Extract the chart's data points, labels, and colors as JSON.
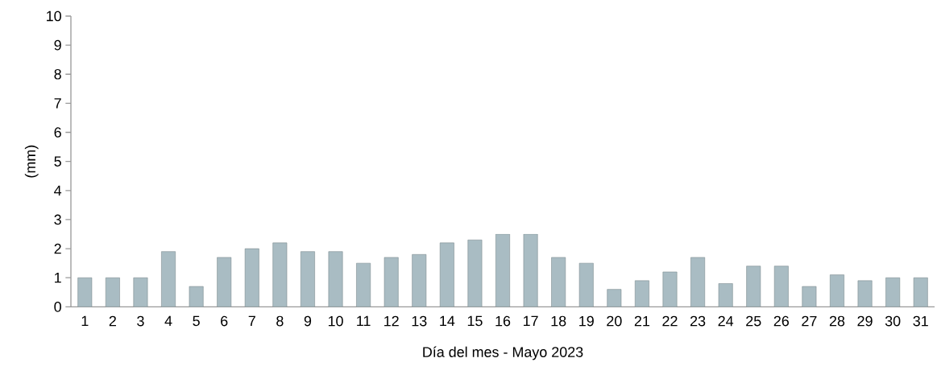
{
  "chart_data": {
    "type": "bar",
    "categories": [
      "1",
      "2",
      "3",
      "4",
      "5",
      "6",
      "7",
      "8",
      "9",
      "10",
      "11",
      "12",
      "13",
      "14",
      "15",
      "16",
      "17",
      "18",
      "19",
      "20",
      "21",
      "22",
      "23",
      "24",
      "25",
      "26",
      "27",
      "28",
      "29",
      "30",
      "31"
    ],
    "values": [
      1.0,
      1.0,
      1.0,
      1.9,
      0.7,
      1.7,
      2.0,
      2.2,
      1.9,
      1.9,
      1.5,
      1.7,
      1.8,
      2.2,
      2.3,
      2.5,
      2.5,
      1.7,
      1.5,
      0.6,
      0.9,
      1.2,
      1.7,
      0.8,
      1.4,
      1.4,
      0.7,
      1.1,
      0.9,
      1.0,
      1.0
    ],
    "color": "#a9bcc3",
    "xlabel": "Día del mes - Mayo 2023",
    "ylabel": "(mm)",
    "ylim": [
      0,
      10
    ],
    "yticks": [
      0,
      1,
      2,
      3,
      4,
      5,
      6,
      7,
      8,
      9,
      10
    ]
  }
}
